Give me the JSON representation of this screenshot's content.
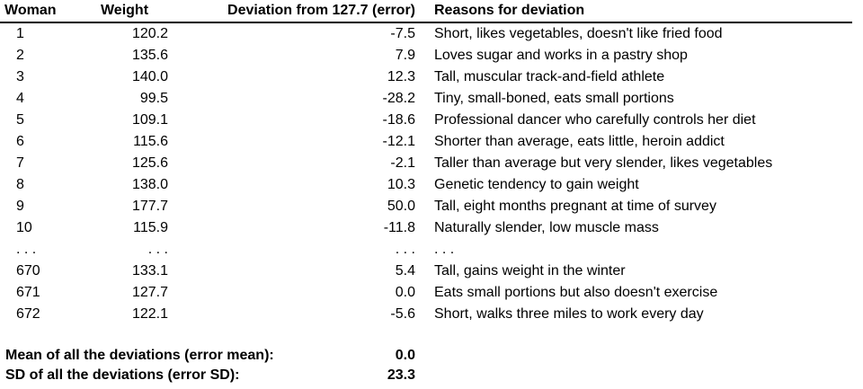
{
  "colors": {
    "text": "#000000",
    "background": "#ffffff",
    "rule": "#000000"
  },
  "table": {
    "headers": [
      "Woman",
      "Weight",
      "Deviation from 127.7 (error)",
      "Reasons for deviation"
    ],
    "rows": [
      {
        "woman": "1",
        "weight": "120.2",
        "deviation": "-7.5",
        "reason": "Short, likes vegetables, doesn't like fried food"
      },
      {
        "woman": "2",
        "weight": "135.6",
        "deviation": "7.9",
        "reason": "Loves sugar and works in a pastry shop"
      },
      {
        "woman": "3",
        "weight": "140.0",
        "deviation": "12.3",
        "reason": "Tall, muscular track-and-field athlete"
      },
      {
        "woman": "4",
        "weight": "99.5",
        "deviation": "-28.2",
        "reason": "Tiny, small-boned, eats small portions"
      },
      {
        "woman": "5",
        "weight": "109.1",
        "deviation": "-18.6",
        "reason": "Professional dancer who carefully controls her diet"
      },
      {
        "woman": "6",
        "weight": "115.6",
        "deviation": "-12.1",
        "reason": "Shorter than average, eats little, heroin addict"
      },
      {
        "woman": "7",
        "weight": "125.6",
        "deviation": "-2.1",
        "reason": "Taller than average but very slender, likes vegetables"
      },
      {
        "woman": "8",
        "weight": "138.0",
        "deviation": "10.3",
        "reason": "Genetic tendency to gain weight"
      },
      {
        "woman": "9",
        "weight": "177.7",
        "deviation": "50.0",
        "reason": "Tall, eight months pregnant at time of survey"
      },
      {
        "woman": "10",
        "weight": "115.9",
        "deviation": "-11.8",
        "reason": "Naturally slender, low muscle mass"
      },
      {
        "woman": ". . .",
        "weight": ". . .",
        "deviation": ". . .",
        "reason": ". . ."
      },
      {
        "woman": "670",
        "weight": "133.1",
        "deviation": "5.4",
        "reason": "Tall, gains weight in the winter"
      },
      {
        "woman": "671",
        "weight": "127.7",
        "deviation": "0.0",
        "reason": "Eats small portions but also doesn't exercise"
      },
      {
        "woman": "672",
        "weight": "122.1",
        "deviation": "-5.6",
        "reason": "Short, walks three miles to work every day"
      }
    ]
  },
  "summary": [
    {
      "label": "Mean of all the deviations (error mean):",
      "value": "0.0"
    },
    {
      "label": "SD of all the deviations (error SD):",
      "value": "23.3"
    }
  ]
}
